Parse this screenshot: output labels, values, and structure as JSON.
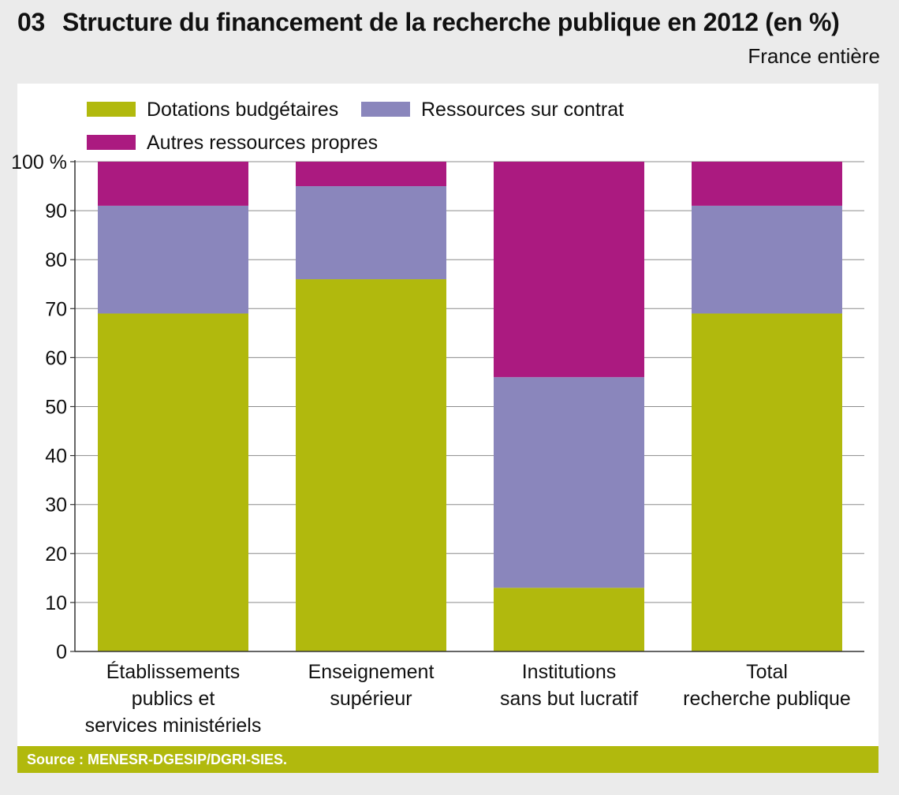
{
  "header": {
    "number": "03",
    "title": "Structure du financement de la recherche publique en 2012 (en %)",
    "scope": "France entière"
  },
  "footer": {
    "source": "Source : MENESR-DGESIP/DGRI-SIES."
  },
  "chart_data": {
    "type": "bar",
    "stacked": true,
    "title": "Structure du financement de la recherche publique en 2012 (en %)",
    "subtitle": "France entière",
    "categories": [
      [
        "Établissements",
        "publics et",
        "services ministériels"
      ],
      [
        "Enseignement",
        "supérieur"
      ],
      [
        "Institutions",
        "sans but lucratif"
      ],
      [
        "Total",
        "recherche publique"
      ]
    ],
    "series": [
      {
        "name": "Dotations budgétaires",
        "color": "#b1b90d",
        "values": [
          69,
          76,
          13,
          69
        ]
      },
      {
        "name": "Ressources sur contrat",
        "color": "#8a86bc",
        "values": [
          22,
          19,
          43,
          22
        ]
      },
      {
        "name": "Autres ressources propres",
        "color": "#ab1a80",
        "values": [
          9,
          5,
          44,
          9
        ]
      }
    ],
    "yticks": [
      "0",
      "10",
      "20",
      "30",
      "40",
      "50",
      "60",
      "70",
      "80",
      "90",
      "100 %"
    ],
    "ylim": [
      0,
      100
    ],
    "grid": true,
    "legend": "top-left"
  }
}
